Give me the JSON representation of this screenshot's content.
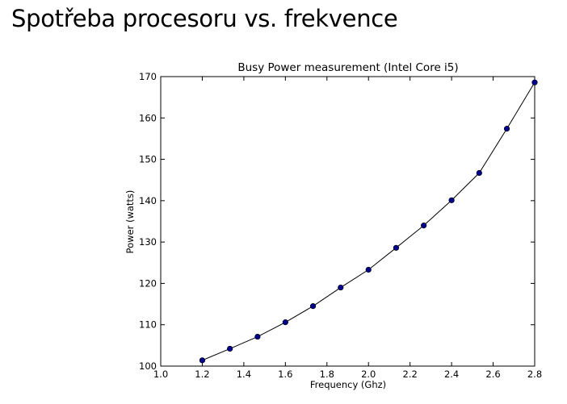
{
  "slide": {
    "title": "Spotřeba procesoru vs. frekvence"
  },
  "chart_data": {
    "type": "line",
    "title": "Busy Power measurement (Intel Core i5)",
    "xlabel": "Frequency (Ghz)",
    "ylabel": "Power (watts)",
    "xlim": [
      1.0,
      2.8
    ],
    "ylim": [
      100,
      170
    ],
    "xticks": [
      "1.0",
      "1.2",
      "1.4",
      "1.6",
      "1.8",
      "2.0",
      "2.2",
      "2.4",
      "2.6",
      "2.8"
    ],
    "yticks": [
      "100",
      "110",
      "120",
      "130",
      "140",
      "150",
      "160",
      "170"
    ],
    "grid": false,
    "line_color": "#000000",
    "marker_color": "#00008b",
    "series": [
      {
        "x": [
          1.2,
          1.333,
          1.466,
          1.6,
          1.733,
          1.866,
          2.0,
          2.133,
          2.266,
          2.4,
          2.533,
          2.666,
          2.8
        ],
        "y": [
          101.4,
          104.2,
          107.1,
          110.6,
          114.5,
          119.0,
          123.3,
          128.6,
          134.0,
          140.1,
          146.7,
          157.4,
          168.6
        ]
      }
    ]
  }
}
